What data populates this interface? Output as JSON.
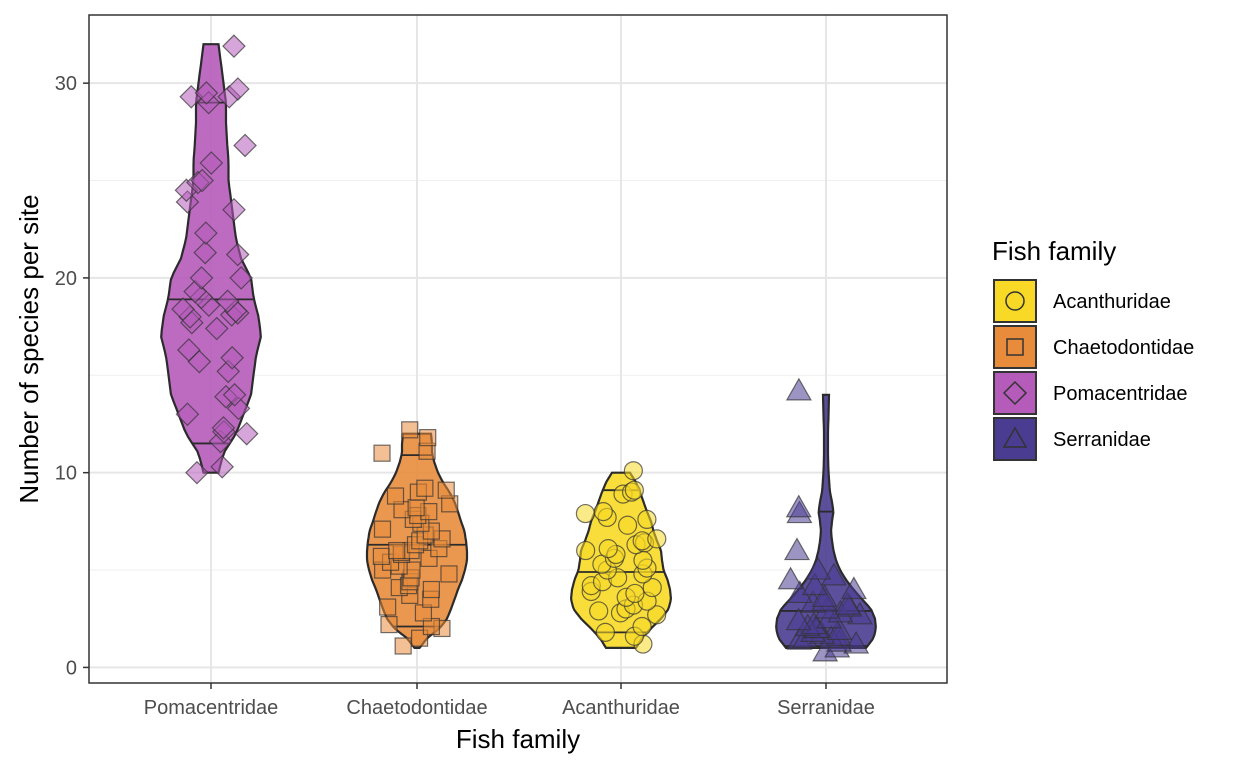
{
  "chart_data": {
    "type": "violin",
    "xlabel": "Fish family",
    "ylabel": "Number of species per site",
    "categories": [
      "Pomacentridae",
      "Chaetodontidae",
      "Acanthuridae",
      "Serranidae"
    ],
    "ylim": [
      -0.8,
      33.5
    ],
    "yticks": [
      0,
      10,
      20,
      30
    ],
    "grid": true,
    "legend": {
      "title": "Fish family",
      "position": "right",
      "entries": [
        {
          "label": "Acanthuridae",
          "color": "#F7D926",
          "shape": "circle"
        },
        {
          "label": "Chaetodontidae",
          "color": "#E88C3C",
          "shape": "square"
        },
        {
          "label": "Pomacentridae",
          "color": "#B55BBA",
          "shape": "diamond"
        },
        {
          "label": "Serranidae",
          "color": "#4A3C91",
          "shape": "triangle"
        }
      ]
    },
    "series": [
      {
        "name": "Pomacentridae",
        "color": "#B55BBA",
        "shape": "diamond",
        "quantiles": [
          11.5,
          18.9,
          29
        ],
        "range": [
          10,
          32
        ],
        "violin_width": [
          [
            10,
            0.15
          ],
          [
            11,
            0.25
          ],
          [
            12,
            0.5
          ],
          [
            13,
            0.65
          ],
          [
            14,
            0.8
          ],
          [
            15,
            0.85
          ],
          [
            16,
            0.9
          ],
          [
            17,
            1.0
          ],
          [
            18,
            0.95
          ],
          [
            19,
            0.85
          ],
          [
            20,
            0.8
          ],
          [
            21,
            0.6
          ],
          [
            22,
            0.5
          ],
          [
            23,
            0.45
          ],
          [
            24,
            0.4
          ],
          [
            25,
            0.35
          ],
          [
            26,
            0.35
          ],
          [
            27,
            0.32
          ],
          [
            28,
            0.3
          ],
          [
            29,
            0.3
          ],
          [
            30,
            0.25
          ],
          [
            31,
            0.2
          ],
          [
            32,
            0.15
          ]
        ],
        "values": [
          10.3,
          10,
          11.6,
          12,
          12.1,
          12.3,
          13,
          13.3,
          13.9,
          14,
          15.2,
          15.7,
          15.9,
          16.3,
          17.4,
          17.7,
          18,
          18.1,
          18.2,
          18.3,
          18.4,
          18.6,
          18.8,
          19,
          19.3,
          20,
          20,
          21.2,
          21.3,
          22.3,
          23.5,
          23.9,
          24.5,
          24.9,
          25,
          25.9,
          26.8,
          29,
          29.3,
          29.3,
          29.5,
          29.7,
          31.9
        ]
      },
      {
        "name": "Chaetodontidae",
        "color": "#E88C3C",
        "shape": "square",
        "quantiles": [
          2.1,
          6.3,
          10.9
        ],
        "range": [
          1,
          12
        ],
        "violin_width": [
          [
            1,
            0.05
          ],
          [
            1.5,
            0.2
          ],
          [
            2,
            0.45
          ],
          [
            2.5,
            0.6
          ],
          [
            3,
            0.68
          ],
          [
            3.5,
            0.75
          ],
          [
            4,
            0.82
          ],
          [
            4.5,
            0.9
          ],
          [
            5,
            0.96
          ],
          [
            5.5,
            1.0
          ],
          [
            6,
            1.0
          ],
          [
            6.5,
            0.98
          ],
          [
            7,
            0.95
          ],
          [
            7.5,
            0.88
          ],
          [
            8,
            0.82
          ],
          [
            8.5,
            0.75
          ],
          [
            9,
            0.65
          ],
          [
            9.5,
            0.52
          ],
          [
            10,
            0.42
          ],
          [
            10.5,
            0.35
          ],
          [
            11,
            0.3
          ],
          [
            11.5,
            0.3
          ],
          [
            12,
            0.28
          ]
        ],
        "values": [
          1.1,
          1.5,
          2,
          2.1,
          2.2,
          2.8,
          3.1,
          3.5,
          3.7,
          4,
          4.1,
          4.2,
          4.4,
          4.6,
          4.8,
          5,
          5,
          5.2,
          5.4,
          5.6,
          5.7,
          5.8,
          5.9,
          6,
          6,
          6.1,
          6.3,
          6.5,
          6.6,
          6.8,
          7,
          7.1,
          7.4,
          7.6,
          7.8,
          8,
          8.1,
          8.2,
          8.4,
          8.8,
          9,
          9.1,
          9.2,
          11,
          11.1,
          11.8,
          12.2
        ]
      },
      {
        "name": "Acanthuridae",
        "color": "#F7D926",
        "shape": "circle",
        "quantiles": [
          1.8,
          4.9,
          9.1
        ],
        "range": [
          1,
          10
        ],
        "violin_width": [
          [
            1,
            0.3
          ],
          [
            1.5,
            0.42
          ],
          [
            2,
            0.6
          ],
          [
            2.5,
            0.8
          ],
          [
            3,
            0.95
          ],
          [
            3.5,
            1.0
          ],
          [
            4,
            0.98
          ],
          [
            4.5,
            0.93
          ],
          [
            5,
            0.85
          ],
          [
            5.5,
            0.82
          ],
          [
            6,
            0.8
          ],
          [
            6.5,
            0.72
          ],
          [
            7,
            0.65
          ],
          [
            7.5,
            0.6
          ],
          [
            8,
            0.52
          ],
          [
            8.5,
            0.45
          ],
          [
            9,
            0.38
          ],
          [
            9.5,
            0.3
          ],
          [
            10,
            0.18
          ]
        ],
        "values": [
          1.2,
          1.6,
          1.8,
          2.1,
          2.7,
          2.8,
          2.9,
          3,
          3.2,
          3.4,
          3.6,
          3.8,
          3.9,
          4.1,
          4.2,
          4.4,
          4.6,
          4.8,
          5,
          5.1,
          5.3,
          5.5,
          5.6,
          5.8,
          6,
          6.1,
          6.3,
          6.4,
          6.5,
          6.6,
          7.3,
          7.6,
          7.7,
          7.9,
          8,
          8.9,
          9,
          9.1,
          10.1
        ]
      },
      {
        "name": "Serranidae",
        "color": "#4A3C91",
        "shape": "triangle",
        "quantiles": [
          1.1,
          2.9,
          8
        ],
        "range": [
          1,
          14
        ],
        "violin_width": [
          [
            1,
            0.8
          ],
          [
            1.5,
            0.95
          ],
          [
            2,
            1.0
          ],
          [
            2.5,
            0.98
          ],
          [
            3,
            0.9
          ],
          [
            3.5,
            0.72
          ],
          [
            4,
            0.55
          ],
          [
            4.5,
            0.4
          ],
          [
            5,
            0.28
          ],
          [
            5.5,
            0.2
          ],
          [
            6,
            0.15
          ],
          [
            6.5,
            0.12
          ],
          [
            7,
            0.1
          ],
          [
            7.5,
            0.12
          ],
          [
            8,
            0.15
          ],
          [
            8.5,
            0.12
          ],
          [
            9,
            0.08
          ],
          [
            10,
            0.05
          ],
          [
            11,
            0.04
          ],
          [
            12,
            0.04
          ],
          [
            13,
            0.05
          ],
          [
            14,
            0.06
          ]
        ],
        "values": [
          0.8,
          1,
          1.2,
          1.3,
          1.4,
          1.5,
          1.5,
          1.6,
          1.7,
          1.8,
          1.9,
          2,
          2,
          2.1,
          2.2,
          2.4,
          2.5,
          2.7,
          2.8,
          3,
          3.1,
          3.2,
          3.3,
          3.4,
          3.6,
          3.8,
          4,
          4.2,
          4.5,
          4.7,
          5,
          6,
          7.9,
          8.2,
          14.2
        ]
      }
    ]
  }
}
